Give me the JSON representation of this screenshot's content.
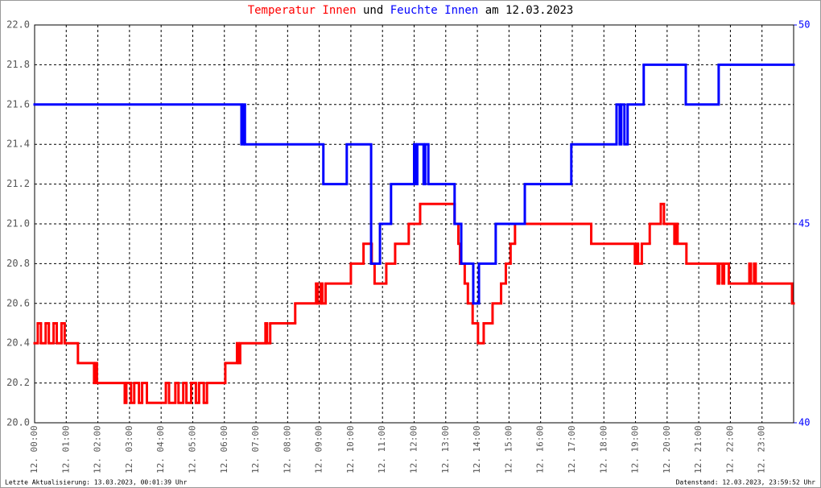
{
  "chart_data": {
    "type": "step",
    "title_joiner": "und",
    "title_suffix": "am 12.03.2023",
    "footer_left": "Letzte Aktualisierung: 13.03.2023, 00:01:39 Uhr",
    "footer_right": "Datenstand: 12.03.2023, 23:59:52 Uhr",
    "xlim": [
      0,
      24
    ],
    "xticks": [
      {
        "value": 0,
        "label": "12. 00:00"
      },
      {
        "value": 1,
        "label": "12. 01:00"
      },
      {
        "value": 2,
        "label": "12. 02:00"
      },
      {
        "value": 3,
        "label": "12. 03:00"
      },
      {
        "value": 4,
        "label": "12. 04:00"
      },
      {
        "value": 5,
        "label": "12. 05:00"
      },
      {
        "value": 6,
        "label": "12. 06:00"
      },
      {
        "value": 7,
        "label": "12. 07:00"
      },
      {
        "value": 8,
        "label": "12. 08:00"
      },
      {
        "value": 9,
        "label": "12. 09:00"
      },
      {
        "value": 10,
        "label": "12. 10:00"
      },
      {
        "value": 11,
        "label": "12. 11:00"
      },
      {
        "value": 12,
        "label": "12. 12:00"
      },
      {
        "value": 13,
        "label": "12. 13:00"
      },
      {
        "value": 14,
        "label": "12. 14:00"
      },
      {
        "value": 15,
        "label": "12. 15:00"
      },
      {
        "value": 16,
        "label": "12. 16:00"
      },
      {
        "value": 17,
        "label": "12. 17:00"
      },
      {
        "value": 18,
        "label": "12. 18:00"
      },
      {
        "value": 19,
        "label": "12. 19:00"
      },
      {
        "value": 20,
        "label": "12. 20:00"
      },
      {
        "value": 21,
        "label": "12. 21:00"
      },
      {
        "value": 22,
        "label": "12. 22:00"
      },
      {
        "value": 23,
        "label": "12. 23:00"
      }
    ],
    "ylim": [
      20,
      22
    ],
    "yticks": [
      {
        "value": 20,
        "label": "20.0"
      },
      {
        "value": 20.2,
        "label": "20.2"
      },
      {
        "value": 20.4,
        "label": "20.4"
      },
      {
        "value": 20.6,
        "label": "20.6"
      },
      {
        "value": 20.8,
        "label": "20.8"
      },
      {
        "value": 21,
        "label": "21.0"
      },
      {
        "value": 21.2,
        "label": "21.2"
      },
      {
        "value": 21.4,
        "label": "21.4"
      },
      {
        "value": 21.6,
        "label": "21.6"
      },
      {
        "value": 21.8,
        "label": "21.8"
      },
      {
        "value": 22,
        "label": "22.0"
      }
    ],
    "y2lim": [
      40,
      50
    ],
    "y2ticks": [
      40,
      45,
      50
    ],
    "grid": true,
    "series": [
      {
        "name": "Temperatur Innen",
        "color": "#ff0000",
        "x": [
          0,
          0.1,
          0.2,
          0.35,
          0.45,
          0.6,
          0.7,
          0.85,
          0.95,
          1.37,
          1.88,
          1.92,
          1.97,
          2.85,
          2.9,
          3.05,
          3.15,
          3.3,
          3.4,
          3.55,
          4.15,
          4.25,
          4.45,
          4.55,
          4.7,
          4.8,
          4.95,
          5.1,
          5.2,
          5.35,
          5.45,
          6.03,
          6.4,
          6.45,
          6.5,
          7.3,
          7.35,
          7.45,
          8.24,
          8.9,
          8.95,
          9.05,
          9.1,
          9.2,
          10.0,
          10.4,
          10.66,
          10.75,
          11.12,
          11.4,
          11.83,
          12.19,
          13.28,
          13.4,
          13.45,
          13.6,
          13.7,
          13.85,
          14.02,
          14.2,
          14.48,
          14.75,
          14.9,
          15.05,
          15.19,
          17.6,
          18.98,
          19.03,
          19.08,
          19.2,
          19.45,
          19.8,
          19.9,
          20.23,
          20.28,
          20.33,
          20.61,
          21.6,
          21.65,
          21.75,
          21.8,
          21.95,
          22.6,
          22.65,
          22.75,
          22.8,
          23.95
        ],
        "values": [
          20.4,
          20.5,
          20.4,
          20.5,
          20.4,
          20.5,
          20.4,
          20.5,
          20.4,
          20.3,
          20.2,
          20.3,
          20.2,
          20.1,
          20.2,
          20.1,
          20.2,
          20.1,
          20.2,
          20.1,
          20.2,
          20.1,
          20.2,
          20.1,
          20.2,
          20.1,
          20.2,
          20.1,
          20.2,
          20.1,
          20.2,
          20.3,
          20.4,
          20.3,
          20.4,
          20.5,
          20.4,
          20.5,
          20.6,
          20.7,
          20.6,
          20.7,
          20.6,
          20.7,
          20.8,
          20.9,
          20.8,
          20.7,
          20.8,
          20.9,
          21.0,
          21.1,
          21.0,
          20.9,
          20.8,
          20.7,
          20.6,
          20.5,
          20.4,
          20.5,
          20.6,
          20.7,
          20.8,
          20.9,
          21.0,
          20.9,
          20.8,
          20.9,
          20.8,
          20.9,
          21.0,
          21.1,
          21.0,
          20.9,
          21.0,
          20.9,
          20.8,
          20.7,
          20.8,
          20.7,
          20.8,
          20.7,
          20.8,
          20.7,
          20.8,
          20.7,
          20.6
        ]
      },
      {
        "name": "Feuchte Innen",
        "color": "#0000ff",
        "axis": "y2",
        "x": [
          0,
          6.54,
          6.6,
          6.65,
          9.13,
          9.87,
          10.64,
          10.92,
          11.27,
          12.0,
          12.05,
          12.1,
          12.3,
          12.35,
          12.45,
          13.28,
          13.49,
          13.87,
          14.05,
          14.58,
          15.5,
          16.97,
          18.4,
          18.5,
          18.55,
          18.65,
          18.75,
          19.26,
          20.59,
          21.63
        ],
        "values": [
          48,
          47,
          48,
          47,
          46,
          47,
          44,
          45,
          46,
          47,
          46,
          47,
          46,
          47,
          46,
          45,
          44,
          43,
          44,
          45,
          46,
          47,
          48,
          47,
          48,
          47,
          48,
          49,
          48,
          49
        ]
      }
    ]
  }
}
